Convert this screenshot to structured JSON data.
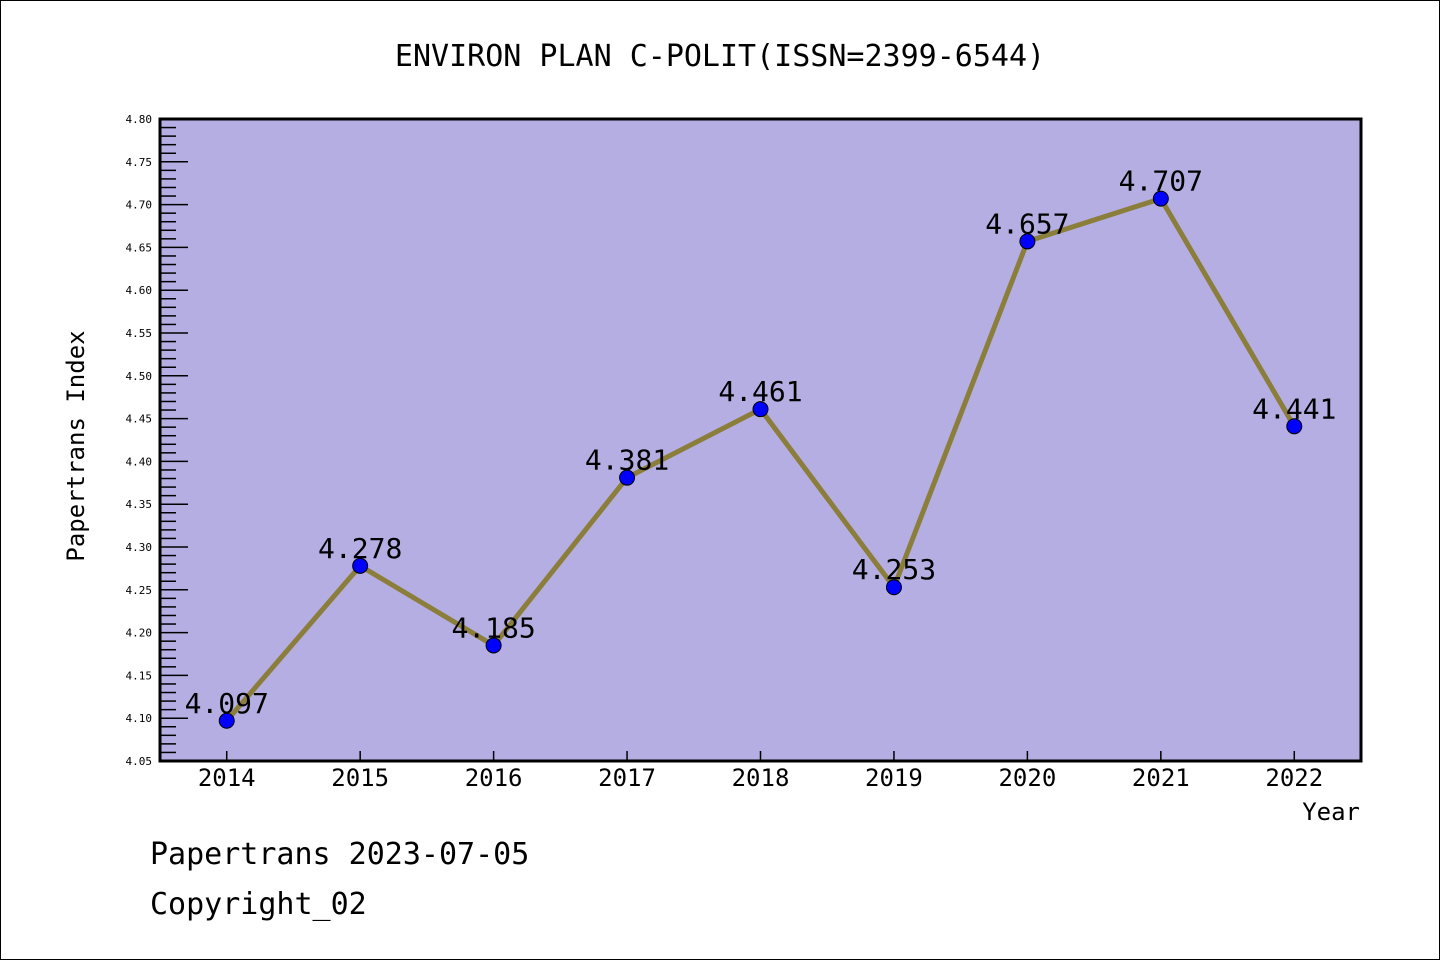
{
  "chart_data": {
    "type": "line",
    "title": "ENVIRON PLAN C-POLIT(ISSN=2399-6544)",
    "xlabel": "Year",
    "ylabel": "Papertrans Index",
    "x": [
      2014,
      2015,
      2016,
      2017,
      2018,
      2019,
      2020,
      2021,
      2022
    ],
    "x_tick_labels": [
      "2014",
      "2015",
      "2016",
      "2017",
      "2018",
      "2019",
      "2020",
      "2021",
      "2022"
    ],
    "values": [
      4.097,
      4.278,
      4.185,
      4.381,
      4.461,
      4.253,
      4.657,
      4.707,
      4.441
    ],
    "data_labels": [
      "4.097",
      "4.278",
      "4.185",
      "4.381",
      "4.461",
      "4.253",
      "4.657",
      "4.707",
      "4.441"
    ],
    "ylim": [
      4.05,
      4.8
    ],
    "xlim": [
      2013.5,
      2022.5
    ],
    "y_tick_labels": [
      "4.05",
      "4.10",
      "4.15",
      "4.20",
      "4.25",
      "4.30",
      "4.35",
      "4.40",
      "4.45",
      "4.50",
      "4.55",
      "4.60",
      "4.65",
      "4.70",
      "4.75",
      "4.80"
    ],
    "grid": false,
    "colors": {
      "plot_bg": "#b5aee3",
      "line": "#8b7d3a",
      "marker": "#0000ff"
    }
  },
  "footer": {
    "line1": "Papertrans 2023-07-05",
    "line2": "Copyright_02"
  }
}
